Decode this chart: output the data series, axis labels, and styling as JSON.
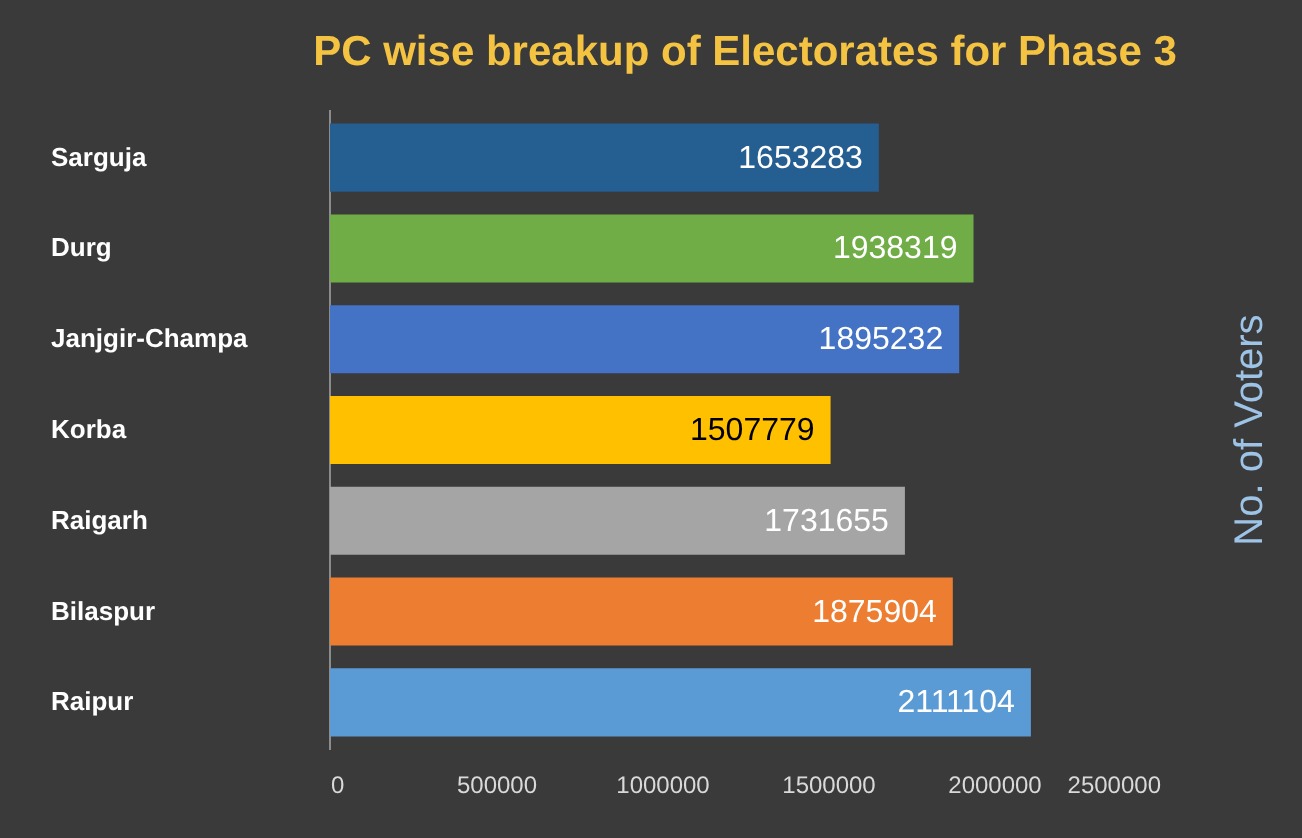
{
  "chart_data": {
    "type": "bar",
    "orientation": "horizontal",
    "title": "PC wise breakup of Electorates for Phase 3",
    "ylabel": "No. of Voters",
    "categories": [
      "Sarguja",
      "Durg",
      "Janjgir-Champa",
      "Korba",
      "Raigarh",
      "Bilaspur",
      "Raipur"
    ],
    "values": [
      1653283,
      1938319,
      1895232,
      1507779,
      1731655,
      1875904,
      2111104
    ],
    "colors": [
      "#255e91",
      "#70ad47",
      "#4472c4",
      "#ffc000",
      "#a5a5a5",
      "#ed7d31",
      "#5b9bd5"
    ],
    "xlim": [
      0,
      2500000
    ],
    "xticks": [
      0,
      {
        "value": 500000,
        "label": "500000"
      },
      {
        "value": 1000000,
        "label": "1000000"
      },
      {
        "value": 1500000,
        "label": "1500000"
      },
      {
        "value": 2000000,
        "label": "2000000"
      },
      {
        "value": 2500000,
        "label": "2500000"
      }
    ],
    "data_labels": true,
    "grid": false
  }
}
